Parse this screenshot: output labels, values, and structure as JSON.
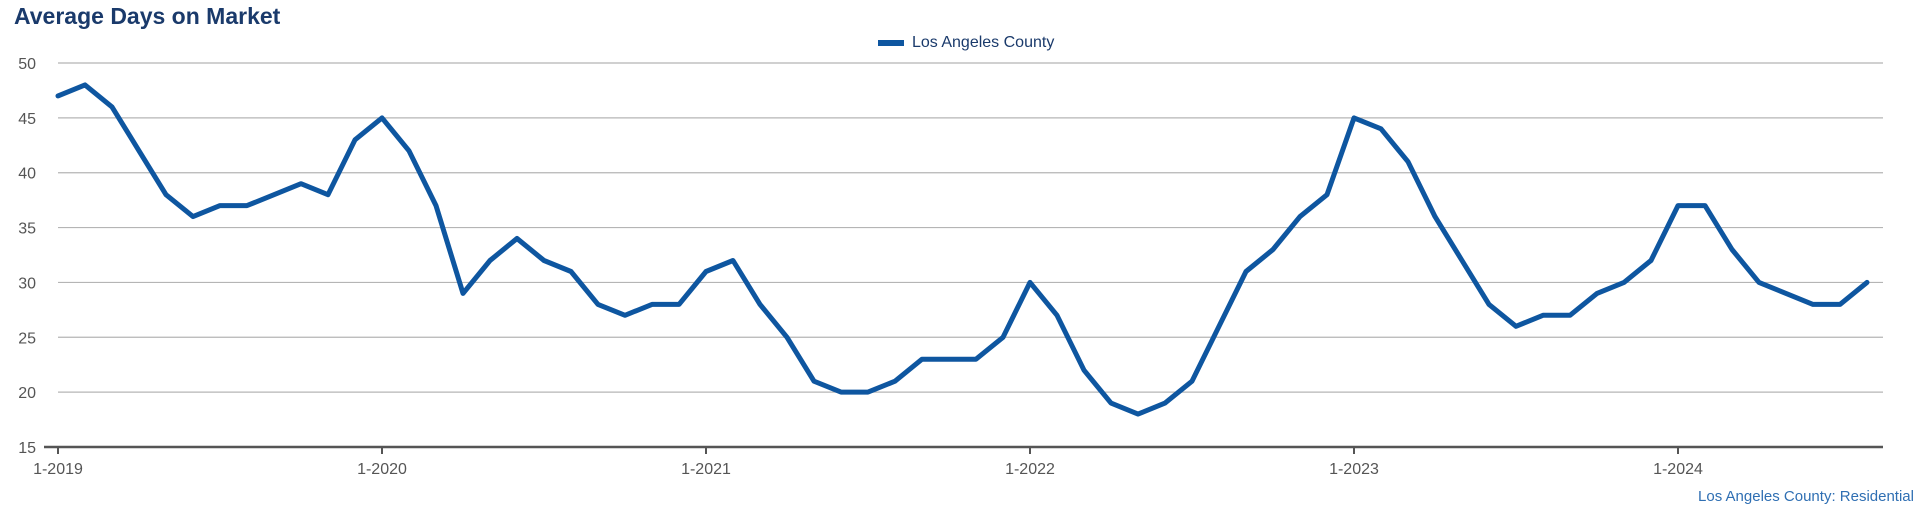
{
  "chart_data": {
    "type": "line",
    "title": "Average Days on Market",
    "xlabel": "",
    "ylabel": "",
    "ylim": [
      15,
      50
    ],
    "yticks": [
      15,
      20,
      25,
      30,
      35,
      40,
      45,
      50
    ],
    "xtick_labels": [
      "1-2019",
      "1-2020",
      "1-2021",
      "1-2022",
      "1-2023",
      "1-2024"
    ],
    "x_start": "1-2019",
    "grid": "horizontal",
    "legend_position": "top-center",
    "series": [
      {
        "name": "Los Angeles County",
        "color": "#0e56a0",
        "values": [
          47,
          48,
          46,
          42,
          38,
          36,
          37,
          37,
          38,
          39,
          38,
          43,
          45,
          42,
          37,
          29,
          32,
          34,
          32,
          31,
          28,
          27,
          28,
          28,
          31,
          32,
          28,
          25,
          21,
          20,
          20,
          21,
          23,
          23,
          23,
          25,
          30,
          27,
          22,
          19,
          18,
          19,
          21,
          26,
          31,
          33,
          36,
          38,
          45,
          44,
          41,
          36,
          32,
          28,
          26,
          27,
          27,
          29,
          30,
          32,
          37,
          37,
          33,
          30,
          29,
          28,
          28,
          30
        ]
      }
    ]
  },
  "footer": "Los Angeles County: Residential"
}
